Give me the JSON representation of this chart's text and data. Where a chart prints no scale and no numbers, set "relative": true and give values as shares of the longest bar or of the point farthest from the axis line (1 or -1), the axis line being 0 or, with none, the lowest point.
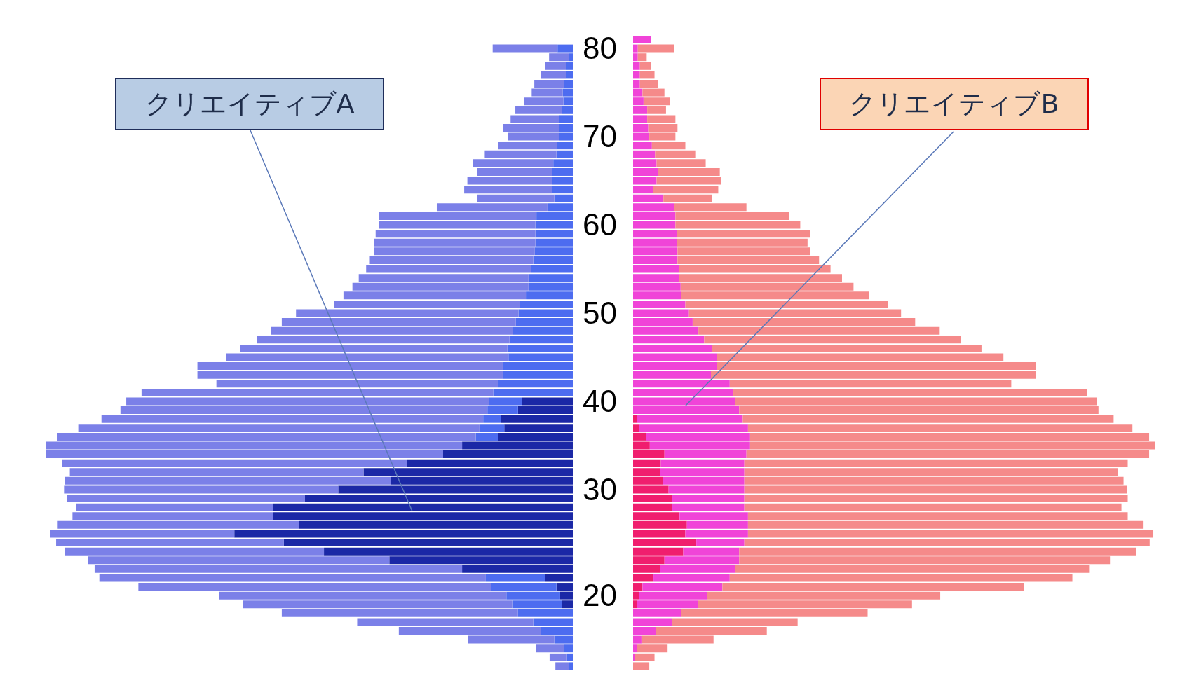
{
  "chart_data": [
    {
      "type": "bar",
      "orientation": "horizontal",
      "relative": true,
      "stacked": true,
      "annotations": [
        "クリエイティブA"
      ],
      "categories": [
        null,
        "80",
        null,
        null,
        null,
        null,
        null,
        null,
        null,
        null,
        null,
        "70",
        null,
        null,
        null,
        null,
        null,
        null,
        null,
        null,
        null,
        "60",
        null,
        null,
        null,
        null,
        null,
        null,
        null,
        null,
        null,
        "50",
        null,
        null,
        null,
        null,
        null,
        null,
        null,
        null,
        null,
        "40",
        null,
        null,
        null,
        null,
        null,
        null,
        null,
        null,
        null,
        "30",
        null,
        null,
        null,
        null,
        null,
        null,
        null,
        null,
        null,
        null,
        null,
        "20",
        null,
        null,
        null,
        null,
        null,
        null,
        null,
        null
      ],
      "series": [
        {
          "color": "#1b28a6",
          "values": [
            null,
            null,
            null,
            null,
            null,
            null,
            null,
            null,
            null,
            null,
            null,
            null,
            null,
            null,
            null,
            null,
            null,
            null,
            null,
            null,
            null,
            null,
            null,
            null,
            null,
            null,
            null,
            null,
            null,
            null,
            null,
            null,
            null,
            null,
            null,
            null,
            null,
            null,
            null,
            null,
            null,
            0.097,
            0.104,
            0.137,
            0.13,
            0.141,
            0.21,
            0.246,
            0.315,
            0.397,
            0.345,
            0.445,
            0.508,
            0.569,
            0.569,
            0.519,
            0.642,
            0.548,
            0.472,
            0.348,
            0.21,
            0.053,
            0.031,
            0.024,
            0.02,
            null,
            null,
            null,
            null,
            null,
            null,
            null
          ]
        },
        {
          "color": "#4d6cf0",
          "values": [
            null,
            0.029,
            0.008,
            0.012,
            0.012,
            0.016,
            0.019,
            0.018,
            0.021,
            0.026,
            0.026,
            0.026,
            0.03,
            0.031,
            0.037,
            0.039,
            0.039,
            0.039,
            0.035,
            0.048,
            0.069,
            0.071,
            0.071,
            0.071,
            0.072,
            0.075,
            0.079,
            0.084,
            0.084,
            0.089,
            0.101,
            0.103,
            0.108,
            0.114,
            0.12,
            0.124,
            0.122,
            0.133,
            0.133,
            0.141,
            0.151,
            0.062,
            0.058,
            0.033,
            0.047,
            0.043,
            null,
            null,
            null,
            null,
            null,
            null,
            null,
            null,
            null,
            null,
            null,
            null,
            null,
            null,
            null,
            0.112,
            0.124,
            0.102,
            0.095,
            0.104,
            0.075,
            0.06,
            0.035,
            0.017,
            0.011,
            0.008
          ]
        },
        {
          "color": "#7b80e8",
          "values": [
            null,
            0.123,
            0.037,
            0.04,
            0.049,
            0.057,
            0.059,
            0.075,
            0.088,
            0.092,
            0.106,
            0.097,
            0.111,
            0.136,
            0.152,
            0.142,
            0.161,
            0.167,
            0.146,
            0.21,
            0.298,
            0.296,
            0.303,
            0.306,
            0.305,
            0.31,
            0.313,
            0.322,
            0.334,
            0.346,
            0.352,
            0.422,
            0.444,
            0.459,
            0.479,
            0.507,
            0.536,
            0.579,
            0.579,
            0.535,
            0.667,
            0.688,
            0.696,
            0.724,
            0.761,
            0.794,
            0.79,
            0.754,
            0.654,
            0.557,
            0.619,
            0.52,
            0.451,
            0.373,
            0.38,
            0.458,
            0.349,
            0.432,
            0.492,
            0.572,
            0.697,
            0.733,
            0.669,
            0.545,
            0.511,
            0.448,
            0.334,
            0.27,
            0.164,
            0.053,
            0.033,
            0.025
          ]
        }
      ]
    },
    {
      "type": "bar",
      "orientation": "horizontal",
      "relative": true,
      "stacked": true,
      "tick_labels": false,
      "annotations": [
        "クリエイティブB"
      ],
      "categories": [
        null,
        "80",
        null,
        null,
        null,
        null,
        null,
        null,
        null,
        null,
        null,
        "70",
        null,
        null,
        null,
        null,
        null,
        null,
        null,
        null,
        null,
        "60",
        null,
        null,
        null,
        null,
        null,
        null,
        null,
        null,
        null,
        "50",
        null,
        null,
        null,
        null,
        null,
        null,
        null,
        null,
        null,
        "40",
        null,
        null,
        null,
        null,
        null,
        null,
        null,
        null,
        null,
        "30",
        null,
        null,
        null,
        null,
        null,
        null,
        null,
        null,
        null,
        null,
        null,
        "20",
        null,
        null,
        null,
        null,
        null,
        null,
        null,
        null
      ],
      "series": [
        {
          "color": "#f01e6e",
          "values": [
            null,
            null,
            null,
            null,
            null,
            null,
            null,
            null,
            null,
            null,
            null,
            null,
            null,
            null,
            null,
            null,
            null,
            null,
            null,
            null,
            null,
            null,
            null,
            null,
            null,
            null,
            null,
            null,
            null,
            null,
            null,
            null,
            null,
            null,
            null,
            null,
            null,
            null,
            null,
            null,
            null,
            null,
            null,
            0.007,
            0.011,
            0.025,
            0.032,
            0.06,
            0.053,
            0.052,
            0.057,
            0.068,
            0.075,
            0.075,
            0.089,
            0.103,
            0.1,
            0.121,
            0.096,
            0.06,
            0.052,
            0.039,
            0.018,
            0.011,
            0.007,
            null,
            null,
            null,
            null,
            null,
            null,
            null
          ]
        },
        {
          "color": "#f044d8",
          "values": [
            0.034,
            0.009,
            0.009,
            0.013,
            0.013,
            0.013,
            0.018,
            0.02,
            0.027,
            0.027,
            0.029,
            0.031,
            0.036,
            0.042,
            0.045,
            0.047,
            0.045,
            0.038,
            0.058,
            0.078,
            0.081,
            0.081,
            0.084,
            0.084,
            0.085,
            0.085,
            0.088,
            0.088,
            0.091,
            0.092,
            0.1,
            0.107,
            0.114,
            0.125,
            0.136,
            0.151,
            0.16,
            0.16,
            0.149,
            0.185,
            0.192,
            0.195,
            0.203,
            0.203,
            0.209,
            0.199,
            0.192,
            0.157,
            0.16,
            0.161,
            0.156,
            0.145,
            0.138,
            0.138,
            0.131,
            0.117,
            0.12,
            0.092,
            0.107,
            0.143,
            0.143,
            0.146,
            0.153,
            0.131,
            0.117,
            0.092,
            0.075,
            0.044,
            0.016,
            0.007,
            0.004,
            null
          ]
        },
        {
          "color": "#f58a8a",
          "values": [
            null,
            0.069,
            0.017,
            0.021,
            0.028,
            0.035,
            0.042,
            0.05,
            0.036,
            0.054,
            0.056,
            0.05,
            0.064,
            0.077,
            0.094,
            0.119,
            0.124,
            0.125,
            0.093,
            0.139,
            0.217,
            0.239,
            0.255,
            0.25,
            0.254,
            0.271,
            0.29,
            0.312,
            0.331,
            0.36,
            0.388,
            0.406,
            0.426,
            0.462,
            0.492,
            0.516,
            0.549,
            0.611,
            0.622,
            0.539,
            0.677,
            0.693,
            0.688,
            0.71,
            0.736,
            0.764,
            0.776,
            0.771,
            0.734,
            0.715,
            0.726,
            0.732,
            0.734,
            0.722,
            0.727,
            0.756,
            0.776,
            0.776,
            0.76,
            0.71,
            0.678,
            0.656,
            0.577,
            0.446,
            0.41,
            0.357,
            0.24,
            0.212,
            0.138,
            0.059,
            0.037,
            0.031
          ]
        }
      ]
    }
  ]
}
